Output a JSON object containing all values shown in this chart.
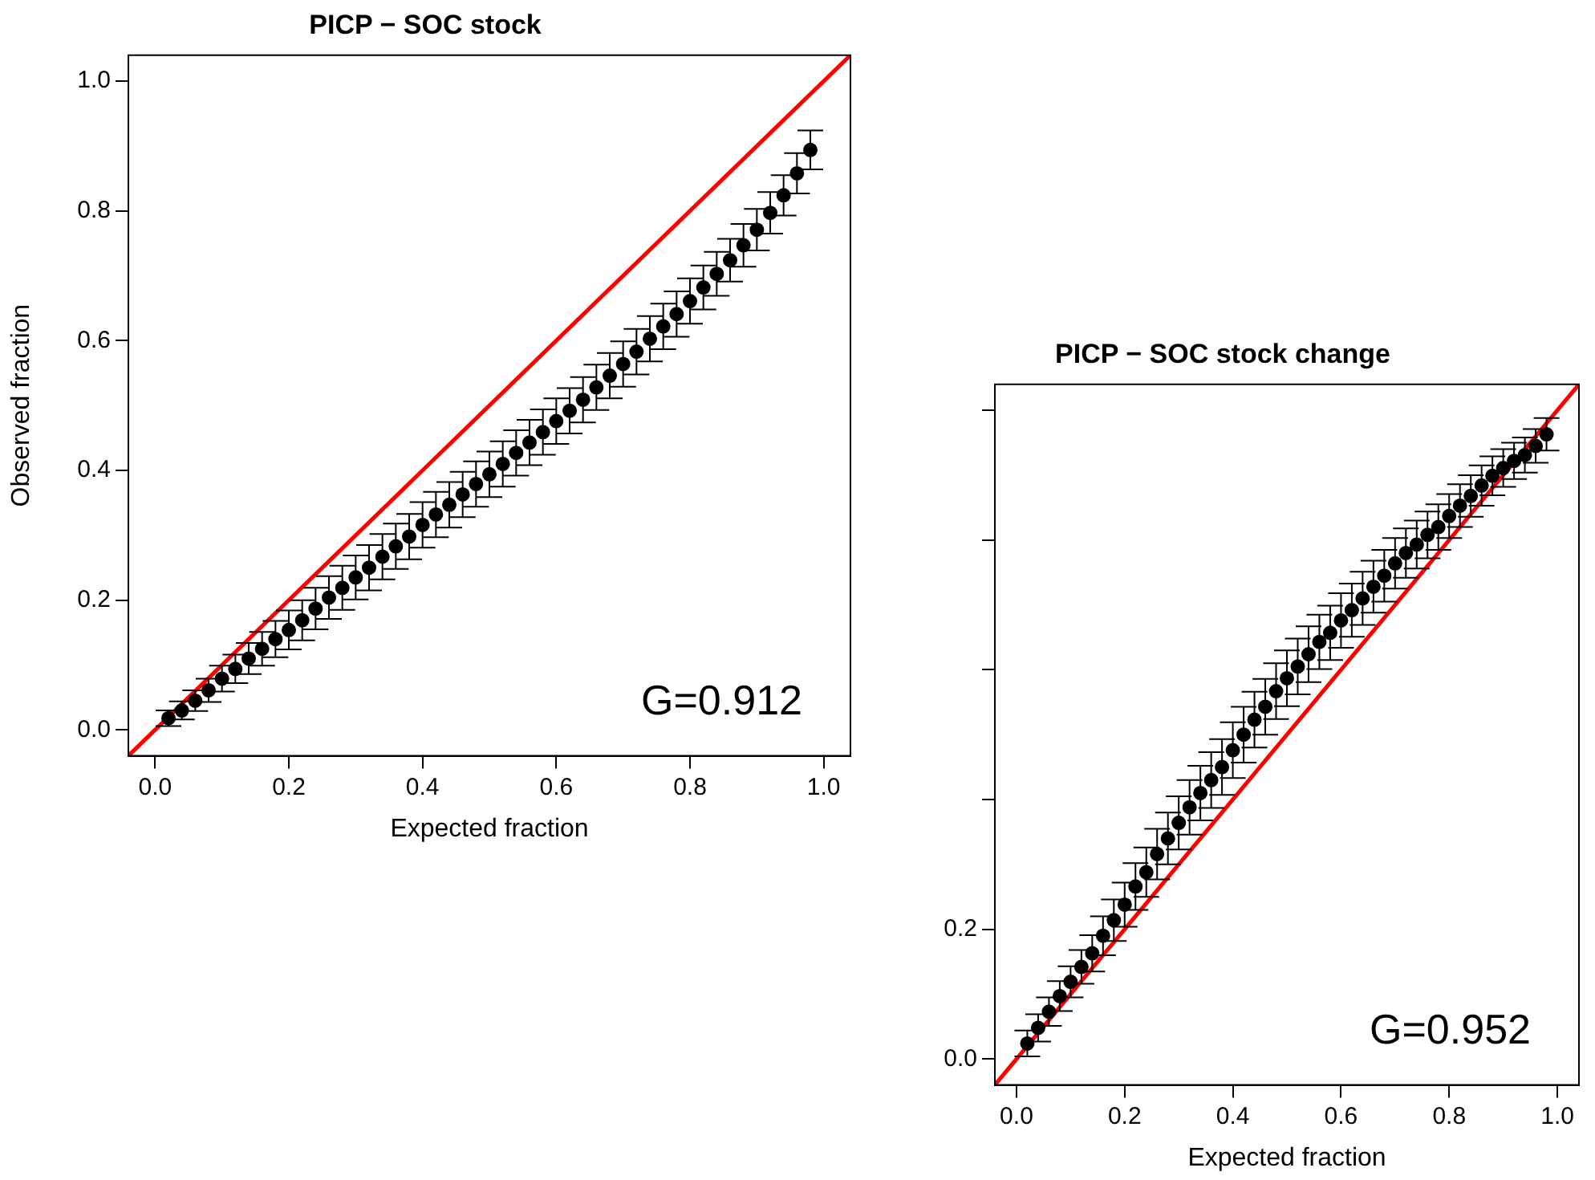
{
  "chart_data": [
    {
      "type": "scatter",
      "title": "PICP − SOC stock",
      "xlabel": "Expected fraction",
      "ylabel": "Observed fraction",
      "marker": "circle",
      "grid": false,
      "legend": false,
      "xlim": [
        -0.04,
        1.04
      ],
      "ylim": [
        -0.04,
        1.04
      ],
      "xticks": [
        {
          "value": 0,
          "label": "0.0"
        },
        {
          "value": 0.2,
          "label": "0.2"
        },
        {
          "value": 0.4,
          "label": "0.4"
        },
        {
          "value": 0.6,
          "label": "0.6"
        },
        {
          "value": 0.8,
          "label": "0.8"
        },
        {
          "value": 1,
          "label": "1.0"
        }
      ],
      "yticks": [
        {
          "value": 0,
          "label": "0.0"
        },
        {
          "value": 0.2,
          "label": "0.2"
        },
        {
          "value": 0.4,
          "label": "0.4"
        },
        {
          "value": 0.6,
          "label": "0.6"
        },
        {
          "value": 0.8,
          "label": "0.8"
        },
        {
          "value": 1,
          "label": "1.0"
        }
      ],
      "annotations": [
        "G=0.912"
      ],
      "series": [
        {
          "type": "scatter",
          "color": "#000000",
          "x": [
            0.02,
            0.04,
            0.06,
            0.08,
            0.1,
            0.12,
            0.14,
            0.16,
            0.18,
            0.2,
            0.22,
            0.24,
            0.26,
            0.28,
            0.3,
            0.32,
            0.34,
            0.36,
            0.38,
            0.4,
            0.42,
            0.44,
            0.46,
            0.48,
            0.5,
            0.52,
            0.54,
            0.56,
            0.58,
            0.6,
            0.62,
            0.64,
            0.66,
            0.68,
            0.7,
            0.72,
            0.74,
            0.76,
            0.78,
            0.8,
            0.82,
            0.84,
            0.86,
            0.88,
            0.9,
            0.92,
            0.94,
            0.96,
            0.98
          ],
          "values": [
            0.018,
            0.03,
            0.045,
            0.061,
            0.079,
            0.094,
            0.11,
            0.125,
            0.14,
            0.154,
            0.169,
            0.187,
            0.204,
            0.219,
            0.235,
            0.25,
            0.267,
            0.283,
            0.298,
            0.316,
            0.332,
            0.347,
            0.363,
            0.379,
            0.394,
            0.41,
            0.427,
            0.443,
            0.459,
            0.476,
            0.492,
            0.509,
            0.528,
            0.546,
            0.564,
            0.583,
            0.603,
            0.622,
            0.641,
            0.661,
            0.682,
            0.703,
            0.724,
            0.747,
            0.771,
            0.797,
            0.824,
            0.858,
            0.894
          ],
          "errors": [
            0.012,
            0.014,
            0.016,
            0.018,
            0.02,
            0.022,
            0.024,
            0.026,
            0.028,
            0.03,
            0.031,
            0.032,
            0.033,
            0.034,
            0.034,
            0.035,
            0.035,
            0.035,
            0.035,
            0.035,
            0.035,
            0.035,
            0.035,
            0.035,
            0.035,
            0.035,
            0.035,
            0.035,
            0.035,
            0.035,
            0.035,
            0.035,
            0.035,
            0.035,
            0.035,
            0.035,
            0.035,
            0.035,
            0.035,
            0.035,
            0.034,
            0.034,
            0.033,
            0.033,
            0.032,
            0.032,
            0.031,
            0.031,
            0.03
          ]
        },
        {
          "type": "line",
          "color": "#ff0000",
          "x": [
            -0.04,
            1.04
          ],
          "values": [
            -0.04,
            1.04
          ],
          "marker": "none"
        }
      ]
    },
    {
      "type": "scatter",
      "title": "PICP − SOC stock change",
      "xlabel": "Expected fraction",
      "marker": "circle",
      "grid": false,
      "legend": false,
      "xlim": [
        -0.04,
        1.04
      ],
      "ylim": [
        -0.04,
        1.04
      ],
      "xticks": [
        {
          "value": 0,
          "label": "0.0"
        },
        {
          "value": 0.2,
          "label": "0.2"
        },
        {
          "value": 0.4,
          "label": "0.4"
        },
        {
          "value": 0.6,
          "label": "0.6"
        },
        {
          "value": 0.8,
          "label": "0.8"
        },
        {
          "value": 1,
          "label": "1.0"
        }
      ],
      "yticks": [
        {
          "value": 0,
          "label": "0.0"
        },
        {
          "value": 0.2,
          "label": "0.2"
        },
        {
          "value": 0.4,
          "label": null
        },
        {
          "value": 0.6,
          "label": null
        },
        {
          "value": 0.8,
          "label": null
        },
        {
          "value": 1,
          "label": null
        }
      ],
      "annotations": [
        "G=0.952"
      ],
      "series": [
        {
          "type": "scatter",
          "color": "#000000",
          "x": [
            0.02,
            0.04,
            0.06,
            0.08,
            0.1,
            0.12,
            0.14,
            0.16,
            0.18,
            0.2,
            0.22,
            0.24,
            0.26,
            0.28,
            0.3,
            0.32,
            0.34,
            0.36,
            0.38,
            0.4,
            0.42,
            0.44,
            0.46,
            0.48,
            0.5,
            0.52,
            0.54,
            0.56,
            0.58,
            0.6,
            0.62,
            0.64,
            0.66,
            0.68,
            0.7,
            0.72,
            0.74,
            0.76,
            0.78,
            0.8,
            0.82,
            0.84,
            0.86,
            0.88,
            0.9,
            0.92,
            0.94,
            0.96,
            0.98
          ],
          "values": [
            0.024,
            0.048,
            0.073,
            0.097,
            0.119,
            0.142,
            0.163,
            0.19,
            0.214,
            0.238,
            0.266,
            0.288,
            0.316,
            0.34,
            0.364,
            0.388,
            0.41,
            0.43,
            0.45,
            0.476,
            0.5,
            0.523,
            0.543,
            0.567,
            0.587,
            0.605,
            0.624,
            0.643,
            0.657,
            0.676,
            0.692,
            0.71,
            0.728,
            0.745,
            0.764,
            0.78,
            0.793,
            0.808,
            0.82,
            0.837,
            0.853,
            0.868,
            0.884,
            0.899,
            0.911,
            0.922,
            0.931,
            0.945,
            0.963
          ],
          "errors": [
            0.02,
            0.021,
            0.022,
            0.023,
            0.024,
            0.026,
            0.028,
            0.03,
            0.032,
            0.034,
            0.036,
            0.038,
            0.039,
            0.04,
            0.041,
            0.042,
            0.042,
            0.043,
            0.043,
            0.043,
            0.043,
            0.043,
            0.043,
            0.043,
            0.043,
            0.043,
            0.043,
            0.042,
            0.042,
            0.042,
            0.041,
            0.041,
            0.04,
            0.04,
            0.039,
            0.038,
            0.037,
            0.036,
            0.035,
            0.034,
            0.033,
            0.032,
            0.031,
            0.03,
            0.029,
            0.028,
            0.027,
            0.026,
            0.025
          ]
        },
        {
          "type": "line",
          "color": "#ff0000",
          "x": [
            -0.04,
            1.04
          ],
          "values": [
            -0.04,
            1.04
          ],
          "marker": "none"
        }
      ]
    }
  ]
}
